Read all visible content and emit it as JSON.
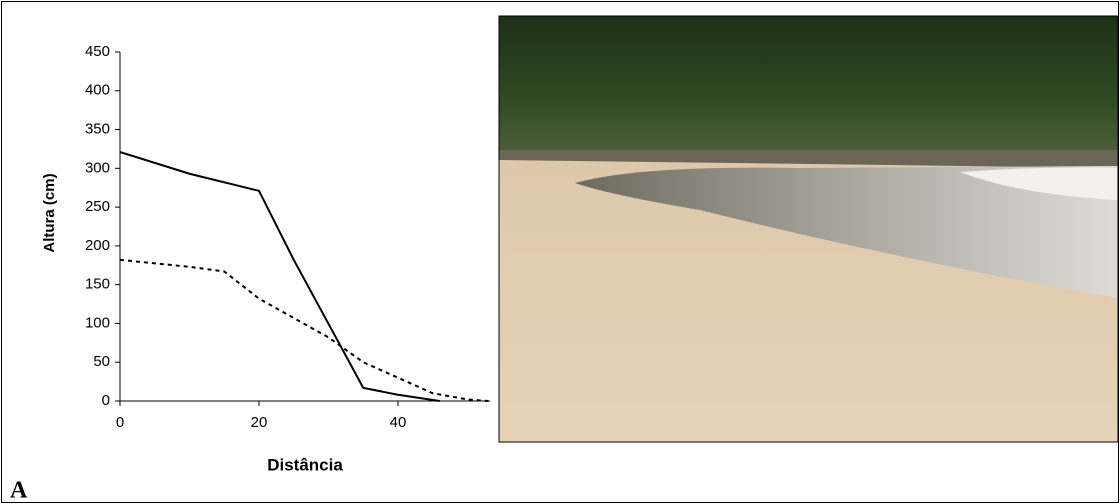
{
  "chart_data": {
    "type": "line",
    "xlabel": "Distância",
    "ylabel": "Altura (cm)",
    "panel_label": "A",
    "xlim": [
      0,
      53
    ],
    "ylim": [
      0,
      450
    ],
    "xticks": [
      0,
      20,
      40
    ],
    "yticks": [
      0,
      50,
      100,
      150,
      200,
      250,
      300,
      350,
      400,
      450
    ],
    "series": [
      {
        "color": "#000000",
        "style": "solid",
        "x": [
          0,
          10,
          20,
          25,
          35,
          40,
          46
        ],
        "values": [
          321,
          293,
          271,
          182,
          17,
          8,
          0
        ]
      },
      {
        "color": "#000000",
        "style": "dashed",
        "x": [
          0,
          10,
          15,
          20,
          30,
          35,
          40,
          45,
          50,
          53
        ],
        "values": [
          182,
          173,
          167,
          132,
          82,
          50,
          30,
          10,
          2,
          0
        ]
      }
    ]
  }
}
